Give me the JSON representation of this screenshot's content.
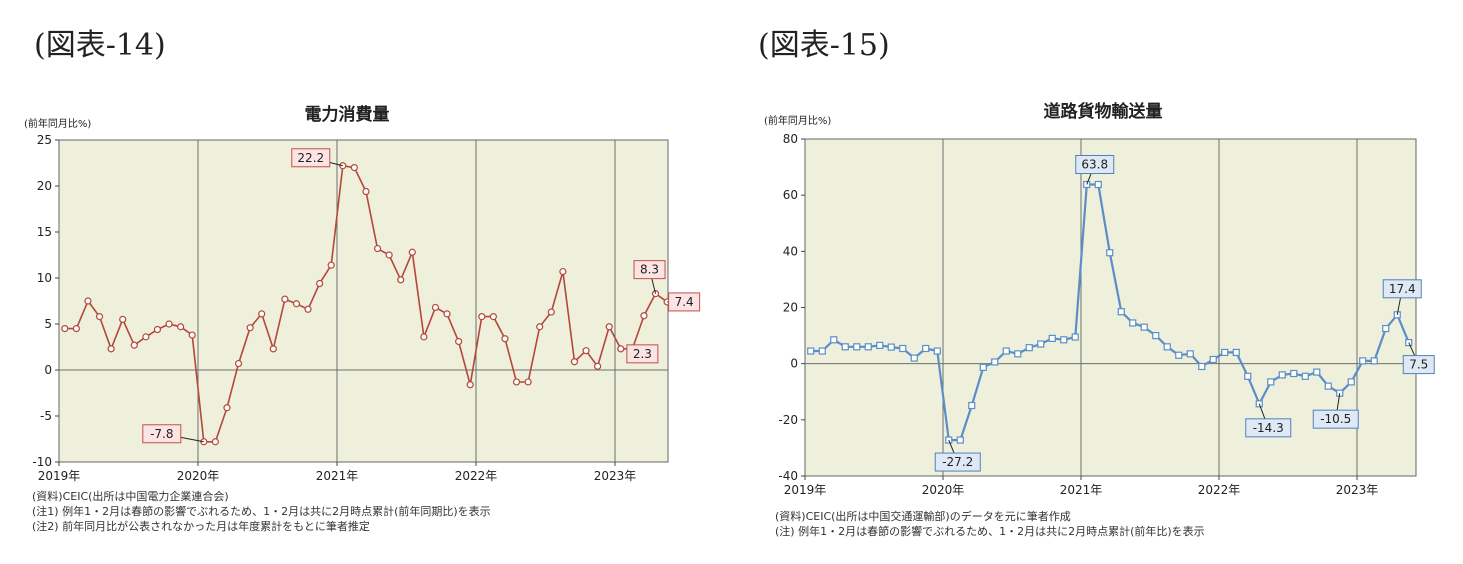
{
  "figures": [
    {
      "figure_label": "(図表-14)"
    },
    {
      "figure_label": "(図表-15)"
    }
  ],
  "chart_data": [
    {
      "type": "line",
      "title": "電力消費量",
      "ylabel": "(前年同月比%)",
      "ylim": [
        -10,
        25
      ],
      "yticks": [
        -10,
        -5,
        0,
        5,
        10,
        15,
        20,
        25
      ],
      "xtick_labels": [
        "2019年",
        "2020年",
        "2021年",
        "2022年",
        "2023年"
      ],
      "x_start": "2019-01",
      "series": [
        {
          "values": [
            4.5,
            4.5,
            7.5,
            5.8,
            2.3,
            5.5,
            2.7,
            3.6,
            4.4,
            5.0,
            4.7,
            3.8,
            -7.8,
            -7.8,
            -4.1,
            0.7,
            4.6,
            6.1,
            2.3,
            7.7,
            7.2,
            6.6,
            9.4,
            11.4,
            22.2,
            22.0,
            19.4,
            13.2,
            12.5,
            9.8,
            12.8,
            3.6,
            6.8,
            6.1,
            3.1,
            -1.6,
            5.8,
            5.8,
            3.4,
            -1.3,
            -1.3,
            4.7,
            6.3,
            10.7,
            0.9,
            2.1,
            0.4,
            4.7,
            2.3,
            2.3,
            5.9,
            8.3,
            7.4
          ]
        }
      ],
      "annotations": [
        {
          "month": "2020-01",
          "text": "-7.8"
        },
        {
          "month": "2021-01",
          "text": "22.2"
        },
        {
          "month": "2023-04",
          "text": "8.3"
        },
        {
          "month": "2023-02",
          "text": "2.3"
        },
        {
          "month": "2023-05",
          "text": "7.4"
        }
      ],
      "color": "#b5473a",
      "marker_fill": "#ffffff",
      "plot_bg": "#eef0dc",
      "label_bg": "#fde4e4",
      "notes": [
        "(資料)CEIC(出所は中国電力企業連合会)",
        "(注1) 例年1・2月は春節の影響でぶれるため、1・2月は共に2月時点累計(前年同期比)を表示",
        "(注2) 前年同月比が公表されなかった月は年度累計をもとに筆者推定"
      ]
    },
    {
      "type": "line",
      "title": "道路貨物輸送量",
      "ylabel": "(前年同月比%)",
      "ylim": [
        -40,
        80
      ],
      "yticks": [
        -40,
        -20,
        0,
        20,
        40,
        60,
        80
      ],
      "xtick_labels": [
        "2019年",
        "2020年",
        "2021年",
        "2022年",
        "2023年"
      ],
      "x_start": "2019-01",
      "series": [
        {
          "values": [
            4.5,
            4.5,
            8.5,
            6.0,
            6.0,
            6.0,
            6.5,
            5.9,
            5.4,
            2.0,
            5.4,
            4.5,
            -27.2,
            -27.2,
            -14.9,
            -1.3,
            0.6,
            4.5,
            3.5,
            5.7,
            7.0,
            9.0,
            8.5,
            9.5,
            63.8,
            63.8,
            39.5,
            18.5,
            14.5,
            13.0,
            10.0,
            6.0,
            3.0,
            3.5,
            -1.0,
            1.5,
            4.0,
            4.0,
            -4.5,
            -14.3,
            -6.5,
            -4.0,
            -3.5,
            -4.5,
            -3.0,
            -8.0,
            -10.5,
            -6.5,
            1.0,
            1.0,
            12.5,
            17.4,
            7.5
          ]
        }
      ],
      "annotations": [
        {
          "month": "2020-01",
          "text": "-27.2"
        },
        {
          "month": "2021-01",
          "text": "63.8"
        },
        {
          "month": "2022-04",
          "text": "-14.3"
        },
        {
          "month": "2022-11",
          "text": "-10.5"
        },
        {
          "month": "2023-04",
          "text": "17.4"
        },
        {
          "month": "2023-05",
          "text": "7.5"
        }
      ],
      "color": "#5b8ec6",
      "marker_fill": "#ffffff",
      "plot_bg": "#eef0dc",
      "label_bg": "#dfe9f6",
      "notes": [
        "(資料)CEIC(出所は中国交通運輸部)のデータを元に筆者作成",
        "(注) 例年1・2月は春節の影響でぶれるため、1・2月は共に2月時点累計(前年比)を表示"
      ]
    }
  ]
}
